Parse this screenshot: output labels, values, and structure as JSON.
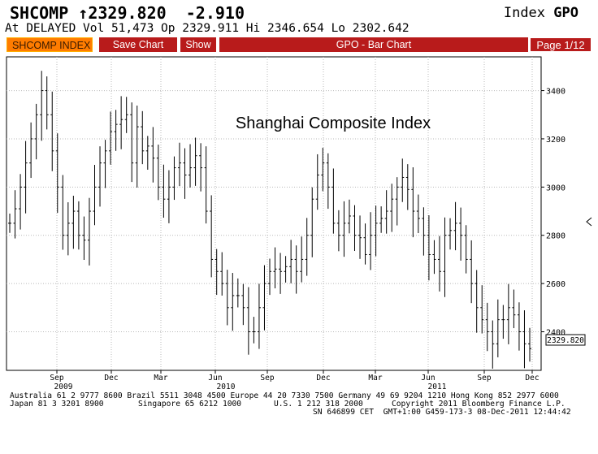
{
  "header": {
    "ticker_line": "SHCOMP ↑2329.820  -2.910",
    "index_label": "Index",
    "index_code": "GPO",
    "stats_line": "At DELAYED Vol 51,473 Op 2329.911 Hi 2346.654 Lo 2302.642"
  },
  "toolbar": {
    "security": "SHCOMP INDEX",
    "save_chart": "Save Chart",
    "show": "Show",
    "function_title": "GPO - Bar Chart",
    "page": "Page 1/12"
  },
  "chart_data": {
    "type": "bar",
    "annotation": "Shanghai Composite Index",
    "last_price_label": "2329.820",
    "ylim": [
      2240,
      3540
    ],
    "y_ticks": [
      "3400",
      "3200",
      "3000",
      "2800",
      "2600",
      "2400"
    ],
    "x_tick_labels": [
      "Sep",
      "Dec",
      "Mar",
      "Jun",
      "Sep",
      "Dec",
      "Mar",
      "Jun",
      "Sep",
      "Dec"
    ],
    "x_year_labels": [
      "2009",
      "2010",
      "2011"
    ],
    "grid": true,
    "ohlc_weekly_close": [
      2850,
      2910,
      3000,
      3100,
      3200,
      3300,
      3400,
      3300,
      3150,
      3000,
      2800,
      2850,
      2900,
      2800,
      2780,
      2900,
      3000,
      3100,
      3150,
      3230,
      3260,
      3280,
      3300,
      3100,
      3250,
      3150,
      3170,
      3120,
      3000,
      2950,
      3000,
      3080,
      3100,
      3050,
      3080,
      3130,
      3080,
      2900,
      2700,
      2650,
      2600,
      2500,
      2550,
      2550,
      2500,
      2400,
      2400,
      2500,
      2600,
      2650,
      2660,
      2650,
      2670,
      2700,
      2650,
      2700,
      2800,
      2950,
      3050,
      3100,
      3000,
      2850,
      2800,
      2850,
      2880,
      2800,
      2790,
      2720,
      2800,
      2850,
      2870,
      2900,
      2950,
      3000,
      3040,
      2990,
      2900,
      2870,
      2800,
      2720,
      2700,
      2650,
      2800,
      2820,
      2850,
      2800,
      2700,
      2600,
      2500,
      2450,
      2400,
      2350,
      2450,
      2450,
      2500,
      2470,
      2400,
      2350,
      2330
    ]
  },
  "footer": {
    "line1": "Australia 61 2 9777 8600 Brazil 5511 3048 4500 Europe 44 20 7330 7500 Germany 49 69 9204 1210 Hong Kong 852 2977 6000",
    "line2a": "Japan 81 3 3201 8900",
    "line2b": "Singapore 65 6212 1000",
    "line2c": "U.S. 1 212 318 2000",
    "line2d": "Copyright 2011 Bloomberg Finance L.P.",
    "line3": "SN 646899 CET  GMT+1:00 G459-173-3 08-Dec-2011 12:44:42"
  },
  "colors": {
    "bar": "#000000",
    "grid": "#b9b9b9",
    "toolbar_red": "#b81b1b",
    "toolbar_orange": "#ff7c00"
  }
}
